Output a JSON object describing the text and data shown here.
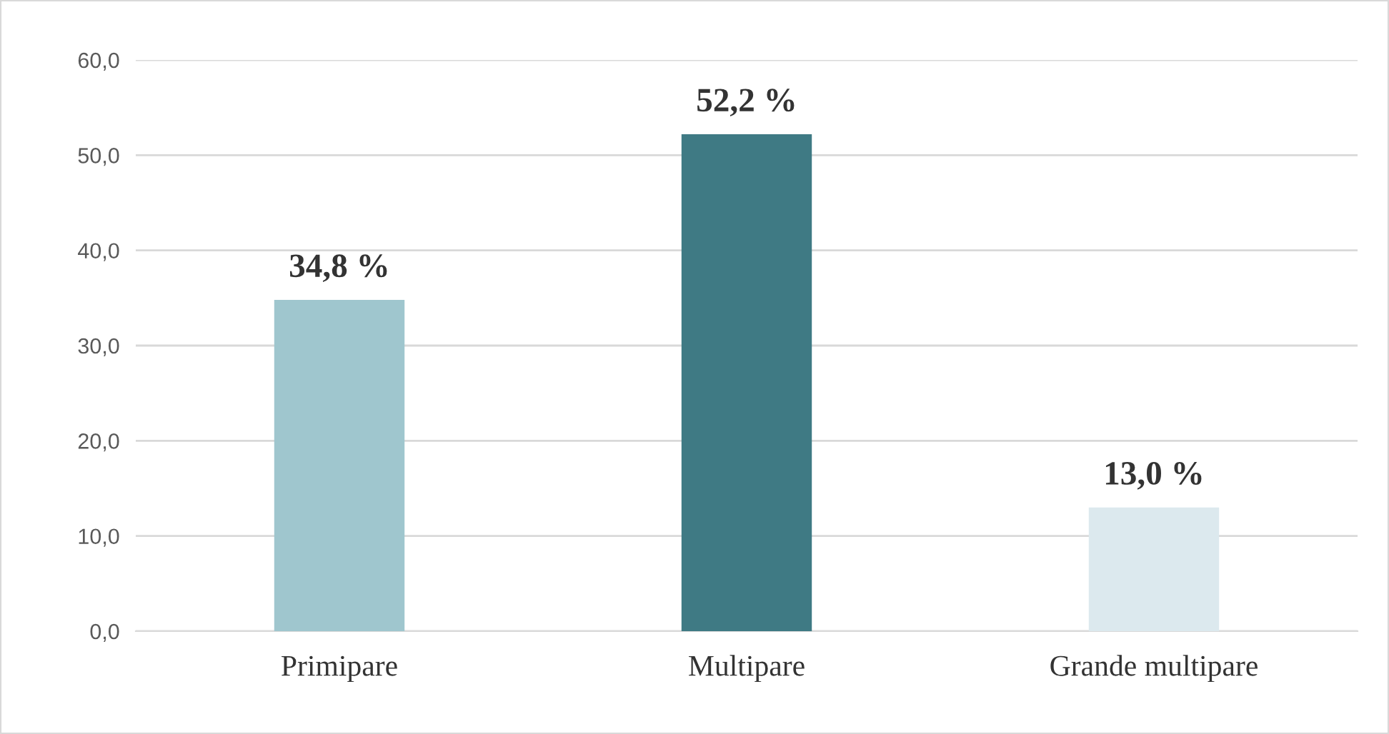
{
  "chart_data": {
    "type": "bar",
    "categories": [
      "Primipare",
      "Multipare",
      "Grande multipare"
    ],
    "values": [
      34.8,
      52.2,
      13.0
    ],
    "colors": [
      "#9fc6ce",
      "#3f7a84",
      "#dce9ee"
    ],
    "value_labels": [
      "34,8 %",
      "52,2 %",
      "13,0 %"
    ],
    "ylim": [
      0,
      60
    ],
    "yticks": [
      {
        "value": 0,
        "label": "0,0"
      },
      {
        "value": 10,
        "label": "10,0"
      },
      {
        "value": 20,
        "label": "20,0"
      },
      {
        "value": 30,
        "label": "30,0"
      },
      {
        "value": 40,
        "label": "40,0"
      },
      {
        "value": 50,
        "label": "50,0"
      },
      {
        "value": 60,
        "label": "60,0"
      }
    ],
    "grid": "y",
    "legend": false
  }
}
